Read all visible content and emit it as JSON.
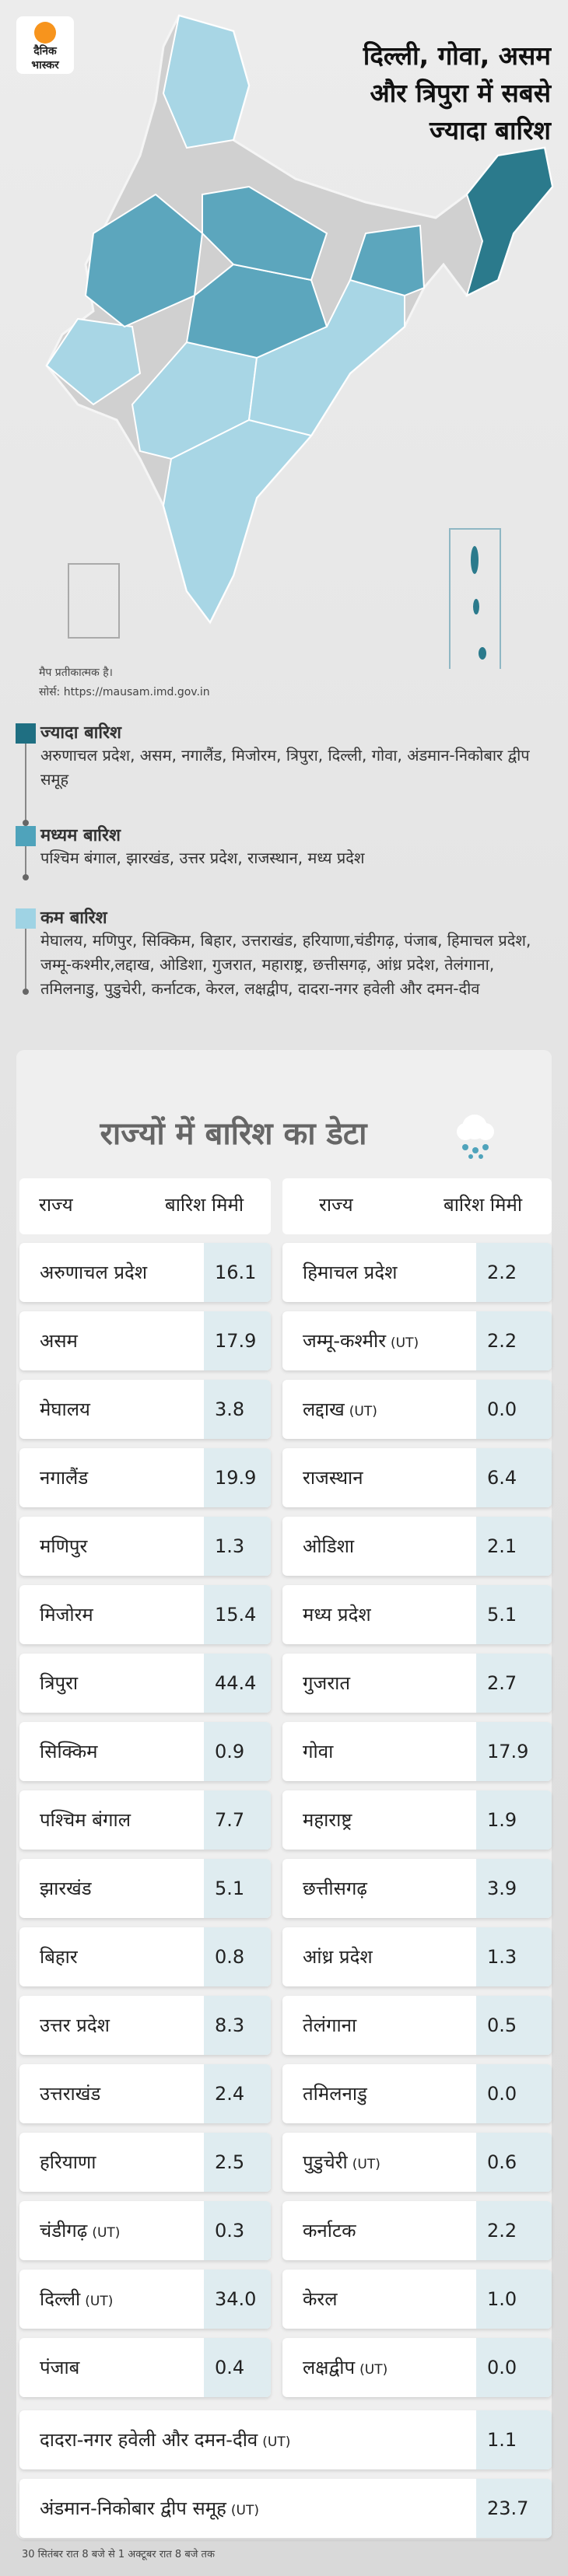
{
  "logo": {
    "line1": "दैनिक",
    "line2": "भास्कर"
  },
  "header": {
    "title_lines": [
      "दिल्ली, गोवा, असम",
      "और त्रिपुरा में सबसे",
      "ज्यादा बारिश"
    ]
  },
  "map": {
    "note": "मैप प्रतीकात्मक है।",
    "source": "सोर्स: https://mausam.imd.gov.in"
  },
  "legend": [
    {
      "title": "ज्यादा बारिश",
      "color": "#1f6f82",
      "text": "अरुणाचल प्रदेश, असम, नगालैंड, मिजोरम, त्रिपुरा, दिल्ली, गोवा, अंडमान-निकोबार द्वीप समूह"
    },
    {
      "title": "मध्यम बारिश",
      "color": "#4fa3bb",
      "text": "पश्चिम बंगाल, झारखंड, उत्तर प्रदेश, राजस्थान, मध्य प्रदेश"
    },
    {
      "title": "कम बारिश",
      "color": "#9fd3e4",
      "text": "मेघालय, मणिपुर, सिक्किम, बिहार, उत्तराखंड, हरियाणा,चंडीगढ़, पंजाब, हिमाचल प्रदेश, जम्मू-कश्मीर,लद्दाख, ओडिशा, गुजरात, महाराष्ट्र, छत्तीसगढ़, आंध्र प्रदेश, तेलंगाना, तमिलनाडु, पुडुचेरी, कर्नाटक, केरल, लक्षद्वीप, दादरा-नगर हवेली और दमन-दीव"
    }
  ],
  "table": {
    "title": "राज्यों में बारिश का डेटा",
    "columns": [
      "राज्य",
      "बारिश मिमी"
    ],
    "left_rows": [
      {
        "state": "अरुणाचल प्रदेश",
        "value": "16.1"
      },
      {
        "state": "असम",
        "value": "17.9"
      },
      {
        "state": "मेघालय",
        "value": "3.8"
      },
      {
        "state": "नगालैंड",
        "value": "19.9"
      },
      {
        "state": "मणिपुर",
        "value": "1.3"
      },
      {
        "state": "मिजोरम",
        "value": "15.4"
      },
      {
        "state": "त्रिपुरा",
        "value": "44.4"
      },
      {
        "state": "सिक्किम",
        "value": "0.9"
      },
      {
        "state": "पश्चिम बंगाल",
        "value": "7.7"
      },
      {
        "state": "झारखंड",
        "value": "5.1"
      },
      {
        "state": "बिहार",
        "value": "0.8"
      },
      {
        "state": "उत्तर प्रदेश",
        "value": "8.3"
      },
      {
        "state": "उत्तराखंड",
        "value": "2.4"
      },
      {
        "state": "हरियाणा",
        "value": "2.5"
      },
      {
        "state": "चंडीगढ़",
        "tag": "(UT)",
        "value": "0.3"
      },
      {
        "state": "दिल्ली",
        "tag": "(UT)",
        "value": "34.0"
      },
      {
        "state": "पंजाब",
        "value": "0.4"
      }
    ],
    "right_rows": [
      {
        "state": "हिमाचल प्रदेश",
        "value": "2.2"
      },
      {
        "state": "जम्मू-कश्मीर",
        "tag": "(UT)",
        "value": "2.2"
      },
      {
        "state": "लद्दाख",
        "tag": "(UT)",
        "value": "0.0"
      },
      {
        "state": "राजस्थान",
        "value": "6.4"
      },
      {
        "state": "ओडिशा",
        "value": "2.1"
      },
      {
        "state": "मध्य प्रदेश",
        "value": "5.1"
      },
      {
        "state": "गुजरात",
        "value": "2.7"
      },
      {
        "state": "गोवा",
        "value": "17.9"
      },
      {
        "state": "महाराष्ट्र",
        "value": "1.9"
      },
      {
        "state": "छत्तीसगढ़",
        "value": "3.9"
      },
      {
        "state": "आंध्र प्रदेश",
        "value": "1.3"
      },
      {
        "state": "तेलंगाना",
        "value": "0.5"
      },
      {
        "state": "तमिलनाडु",
        "value": "0.0"
      },
      {
        "state": "पुडुचेरी",
        "tag": "(UT)",
        "value": "0.6"
      },
      {
        "state": "कर्नाटक",
        "value": "2.2"
      },
      {
        "state": "केरल",
        "value": "1.0"
      },
      {
        "state": "लक्षद्वीप",
        "tag": "(UT)",
        "value": "0.0"
      }
    ],
    "full_rows": [
      {
        "state": "दादरा-नगर हवेली और दमन-दीव",
        "tag": "(UT)",
        "value": "1.1"
      },
      {
        "state": "अंडमान-निकोबार द्वीप समूह",
        "tag": "(UT)",
        "value": "23.7"
      }
    ]
  },
  "footer": "30 सितंबर रात 8 बजे से 1 अक्टूबर रात 8 बजे तक"
}
